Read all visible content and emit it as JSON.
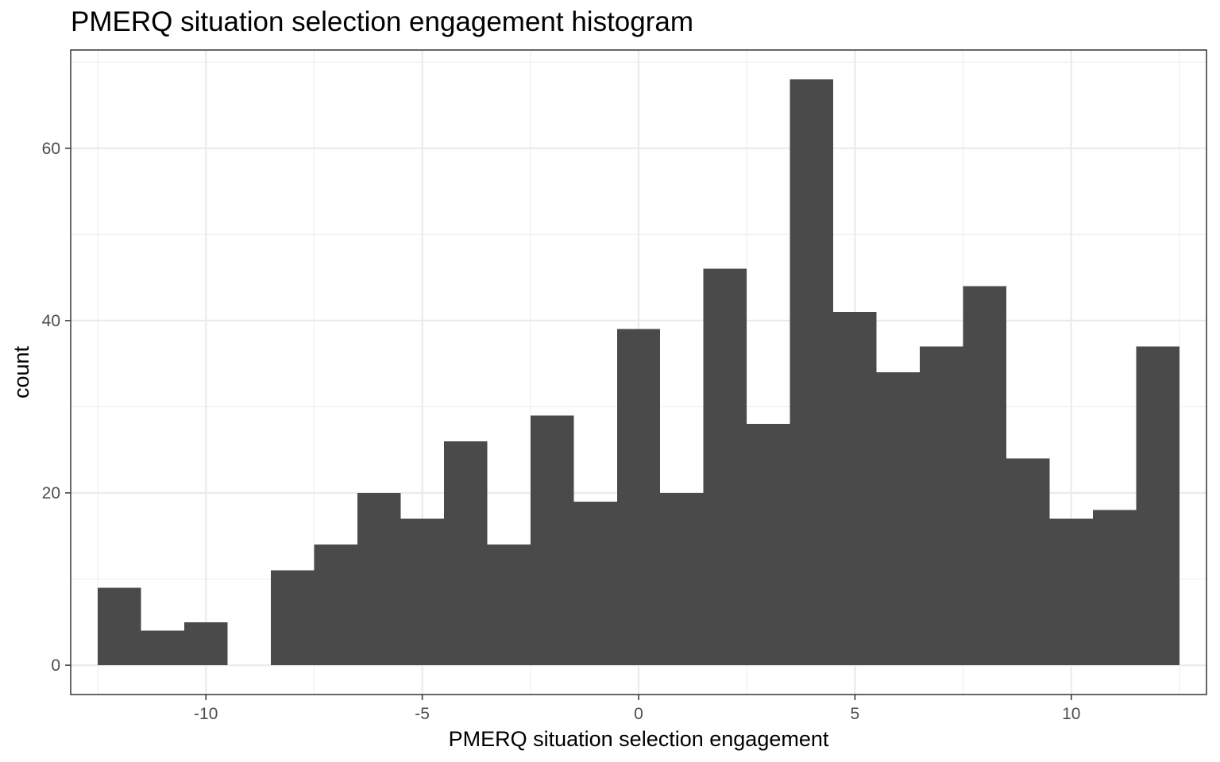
{
  "chart_data": {
    "type": "bar",
    "title": "PMERQ situation selection engagement histogram",
    "xlabel": "PMERQ situation selection engagement",
    "ylabel": "count",
    "bin_width": 1,
    "bins": [
      {
        "x": -12,
        "count": 9
      },
      {
        "x": -11,
        "count": 4
      },
      {
        "x": -10,
        "count": 5
      },
      {
        "x": -9,
        "count": 0
      },
      {
        "x": -8,
        "count": 11
      },
      {
        "x": -7,
        "count": 14
      },
      {
        "x": -6,
        "count": 20
      },
      {
        "x": -5,
        "count": 17
      },
      {
        "x": -4,
        "count": 26
      },
      {
        "x": -3,
        "count": 14
      },
      {
        "x": -2,
        "count": 29
      },
      {
        "x": -1,
        "count": 19
      },
      {
        "x": 0,
        "count": 39
      },
      {
        "x": 1,
        "count": 20
      },
      {
        "x": 2,
        "count": 46
      },
      {
        "x": 3,
        "count": 28
      },
      {
        "x": 4,
        "count": 68
      },
      {
        "x": 5,
        "count": 41
      },
      {
        "x": 6,
        "count": 34
      },
      {
        "x": 7,
        "count": 37
      },
      {
        "x": 8,
        "count": 44
      },
      {
        "x": 9,
        "count": 24
      },
      {
        "x": 10,
        "count": 17
      },
      {
        "x": 11,
        "count": 18
      },
      {
        "x": 12,
        "count": 37
      }
    ],
    "xlim": [
      -13.125,
      13.125
    ],
    "ylim": [
      -3.4,
      71.4
    ],
    "x_ticks": [
      -10,
      -5,
      0,
      5,
      10
    ],
    "x_tick_labels": [
      "-10",
      "-5",
      "0",
      "5",
      "10"
    ],
    "y_ticks": [
      0,
      20,
      40,
      60
    ],
    "y_tick_labels": [
      "0",
      "20",
      "40",
      "60"
    ],
    "grid": true,
    "bar_color": "#4a4a4a",
    "grid_color": "#ebebeb",
    "panel_border_color": "#333333"
  }
}
